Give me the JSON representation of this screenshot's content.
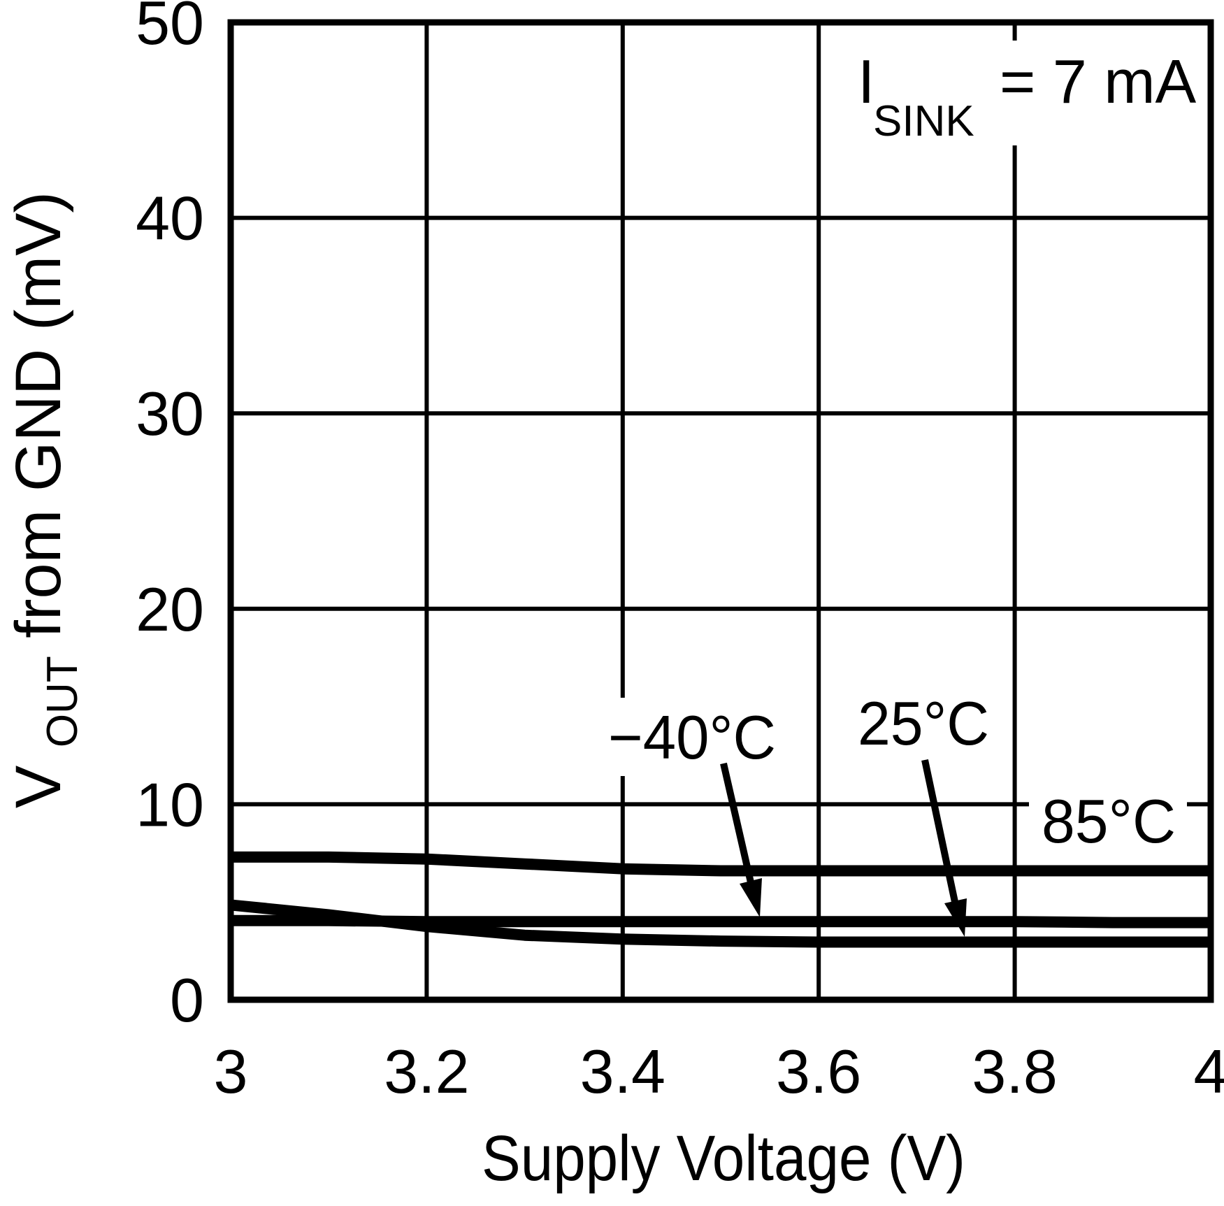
{
  "figure": {
    "annotation": {
      "i_main": "I",
      "i_sub": "SINK",
      "i_eq": "= 7 mA"
    },
    "curve_labels": {
      "minus40": "−40°C",
      "plus25": "25°C",
      "plus85": "85°C"
    },
    "x_title": "Supply Voltage (V)",
    "y_title_main": "V",
    "y_title_sub": "OUT",
    "y_title_rest": " from GND (mV)"
  },
  "chart_data": {
    "type": "line",
    "title": "",
    "xlabel": "Supply Voltage (V)",
    "ylabel": "VOUT from GND (mV)",
    "annotation": "ISINK = 7 mA",
    "xlim": [
      3,
      4
    ],
    "ylim": [
      0,
      50
    ],
    "grid": true,
    "legend_position": "inline-labels-with-arrows",
    "xticks": [
      3,
      3.2,
      3.4,
      3.6,
      3.8,
      4
    ],
    "xtick_labels": [
      "3",
      "3.2",
      "3.4",
      "3.6",
      "3.8",
      "4"
    ],
    "yticks": [
      0,
      10,
      20,
      30,
      40,
      50
    ],
    "ytick_labels": [
      "0",
      "10",
      "20",
      "30",
      "40",
      "50"
    ],
    "x": [
      3.0,
      3.1,
      3.2,
      3.3,
      3.4,
      3.5,
      3.6,
      3.7,
      3.8,
      3.9,
      4.0
    ],
    "series": [
      {
        "name": "85°C",
        "values": [
          7.3,
          7.3,
          7.2,
          6.95,
          6.7,
          6.6,
          6.6,
          6.6,
          6.6,
          6.6,
          6.6
        ]
      },
      {
        "name": "-40°C",
        "values": [
          4.05,
          4.05,
          4.0,
          4.0,
          4.0,
          4.0,
          4.0,
          4.0,
          4.0,
          3.95,
          3.95
        ]
      },
      {
        "name": "25°C",
        "values": [
          4.85,
          4.35,
          3.75,
          3.3,
          3.1,
          3.0,
          2.95,
          2.95,
          2.95,
          2.95,
          2.95
        ]
      }
    ]
  }
}
